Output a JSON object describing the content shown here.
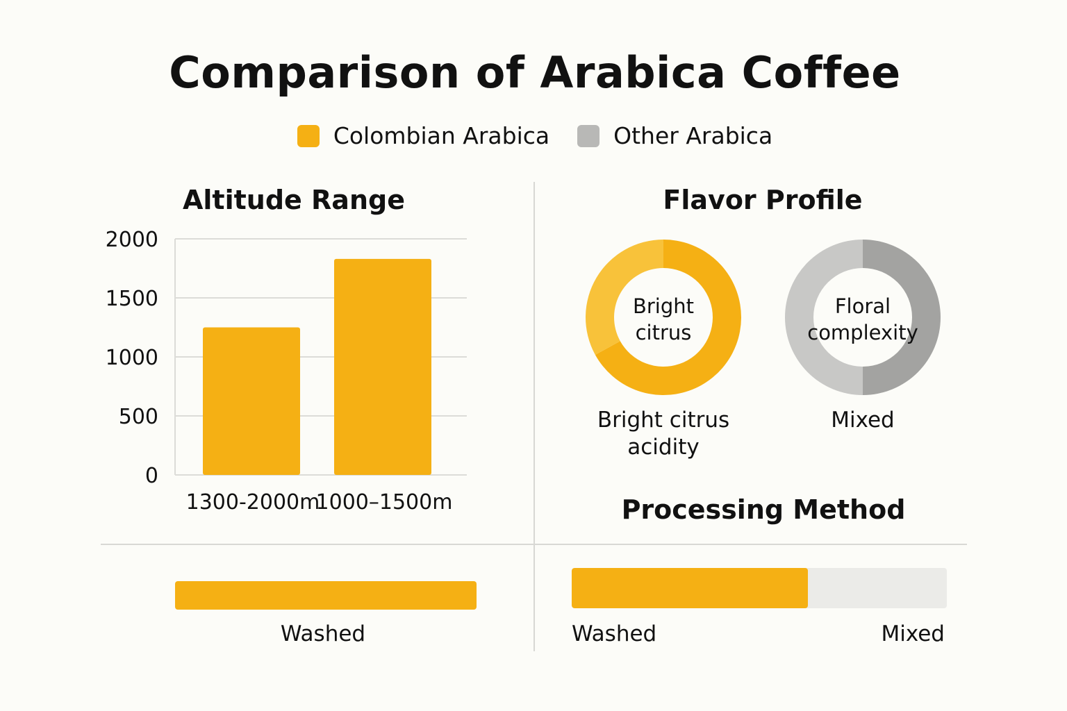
{
  "title": "Comparison of Arabica Coffee",
  "legend": [
    {
      "label": "Colombian Arabica",
      "color": "#f5b014"
    },
    {
      "label": "Other Arabica",
      "color": "#b8b8b6"
    }
  ],
  "colors": {
    "accent": "#f5b014",
    "accent_light": "#f8c23a",
    "grey": "#bdbdbb",
    "grey_dark": "#9e9e9c",
    "track": "#ebebe8"
  },
  "chart_data": [
    {
      "type": "bar",
      "title": "Altitude Range",
      "categories": [
        "1300-2000m",
        "1000–1500m"
      ],
      "values": [
        1250,
        1830
      ],
      "yticks": [
        0,
        500,
        1000,
        1500,
        2000
      ],
      "ylim": [
        0,
        2000
      ],
      "grid": true
    },
    {
      "type": "pie",
      "title": "Flavor Profile",
      "donuts": [
        {
          "center_label": [
            "Bright",
            "citrus"
          ],
          "caption": [
            "Bright citrus",
            "acidity"
          ],
          "slices": [
            67,
            33
          ],
          "colors": [
            "#f5b014",
            "#f8c23a"
          ]
        },
        {
          "center_label": [
            "Floral",
            "complexity"
          ],
          "caption": [
            "Mixed"
          ],
          "slices": [
            50,
            50
          ],
          "colors": [
            "#a3a3a1",
            "#c8c8c6"
          ]
        }
      ]
    },
    {
      "type": "bar",
      "title": "Processing Method",
      "left": {
        "label": "Washed",
        "value": 100
      },
      "right": {
        "washed_label": "Washed",
        "mixed_label": "Mixed",
        "washed_percent": 63,
        "mixed_percent": 37
      }
    }
  ]
}
